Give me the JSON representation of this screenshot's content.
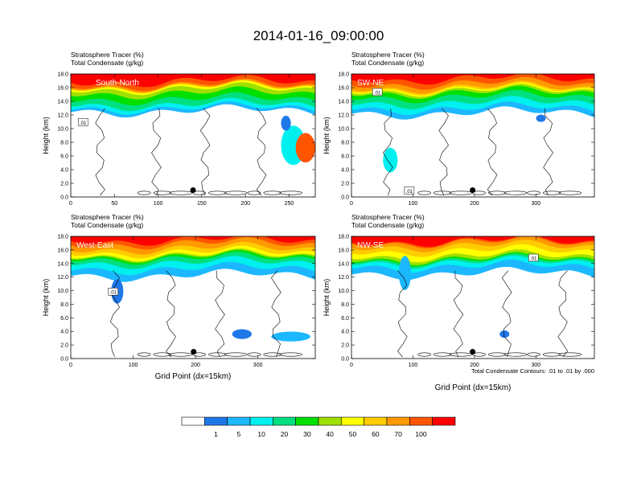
{
  "figure": {
    "title": "2014-01-16_09:00:00",
    "footnote": "Total Condensate Contours: .01 to .01 by .000",
    "colorbar": {
      "colors": [
        "#ffffff",
        "#1f78e8",
        "#1cb8ff",
        "#00f0f0",
        "#00e080",
        "#00e000",
        "#a0e000",
        "#ffff00",
        "#ffcc00",
        "#ff9900",
        "#ff5500",
        "#ff0000"
      ],
      "labels": [
        "1",
        "5",
        "10",
        "20",
        "30",
        "40",
        "50",
        "60",
        "70",
        "100"
      ]
    }
  },
  "chart_data": [
    {
      "type": "heatmap",
      "subtitle_line1": "Stratosphere Tracer   (%)",
      "subtitle_line2": "Total Condensate   (g/kg)",
      "panel_label": "South-North",
      "ylabel": "Height (km)",
      "xlabel": "",
      "xlim": [
        0,
        280
      ],
      "ylim": [
        0,
        18
      ],
      "xticks": [
        "0",
        "50",
        "100",
        "150",
        "200",
        "250"
      ],
      "xtick_values": [
        0,
        50,
        100,
        150,
        200,
        250
      ],
      "yticks": [
        "0.0",
        "2.0",
        "4.0",
        "6.0",
        "8.0",
        "10.0",
        "12.0",
        "14.0",
        "16.0",
        "18.0"
      ],
      "contour_labels": [
        {
          "text": ".01",
          "x": 14,
          "y": 10.9
        }
      ],
      "marker": {
        "x": 140,
        "y": 1.0
      }
    },
    {
      "type": "heatmap",
      "subtitle_line1": "Stratosphere Tracer   (%)",
      "subtitle_line2": "Total Condensate   (g/kg)",
      "panel_label": "SW-NE",
      "ylabel": "Height (km)",
      "xlabel": "",
      "xlim": [
        0,
        395
      ],
      "ylim": [
        0,
        18
      ],
      "xticks": [
        "0",
        "100",
        "200",
        "300"
      ],
      "xtick_values": [
        0,
        100,
        200,
        300
      ],
      "yticks": [
        "0.0",
        "2.0",
        "4.0",
        "6.0",
        "8.0",
        "10.0",
        "12.0",
        "14.0",
        "16.0",
        "18.0"
      ],
      "contour_labels": [
        {
          "text": ".01",
          "x": 42,
          "y": 15.3
        },
        {
          "text": ".01",
          "x": 94,
          "y": 0.9
        }
      ],
      "marker": {
        "x": 197,
        "y": 1.0
      }
    },
    {
      "type": "heatmap",
      "subtitle_line1": "Stratosphere Tracer   (%)",
      "subtitle_line2": "Total Condensate   (g/kg)",
      "panel_label": "West-East",
      "ylabel": "Height (km)",
      "xlabel": "Grid Point (dx=15km)",
      "xlim": [
        0,
        392
      ],
      "ylim": [
        0,
        18
      ],
      "xticks": [
        "0",
        "100",
        "200",
        "300"
      ],
      "xtick_values": [
        0,
        100,
        200,
        300
      ],
      "yticks": [
        "0.0",
        "2.0",
        "4.0",
        "6.0",
        "8.0",
        "10.0",
        "12.0",
        "14.0",
        "16.0",
        "18.0"
      ],
      "contour_labels": [
        {
          "text": ".01",
          "x": 68,
          "y": 9.8
        }
      ],
      "marker": {
        "x": 197,
        "y": 1.0
      }
    },
    {
      "type": "heatmap",
      "subtitle_line1": "Stratosphere Tracer   (%)",
      "subtitle_line2": "Total Condensate   (g/kg)",
      "panel_label": "NW-SE",
      "ylabel": "Height (km)",
      "xlabel": "Grid Point (dx=15km)",
      "xlim": [
        0,
        395
      ],
      "ylim": [
        0,
        18
      ],
      "xticks": [
        "0",
        "100",
        "200",
        "300"
      ],
      "xtick_values": [
        0,
        100,
        200,
        300
      ],
      "yticks": [
        "0.0",
        "2.0",
        "4.0",
        "6.0",
        "8.0",
        "10.0",
        "12.0",
        "14.0",
        "16.0",
        "18.0"
      ],
      "contour_labels": [
        {
          "text": ".01",
          "x": 296,
          "y": 14.8
        }
      ],
      "marker": {
        "x": 197,
        "y": 1.0
      }
    }
  ]
}
